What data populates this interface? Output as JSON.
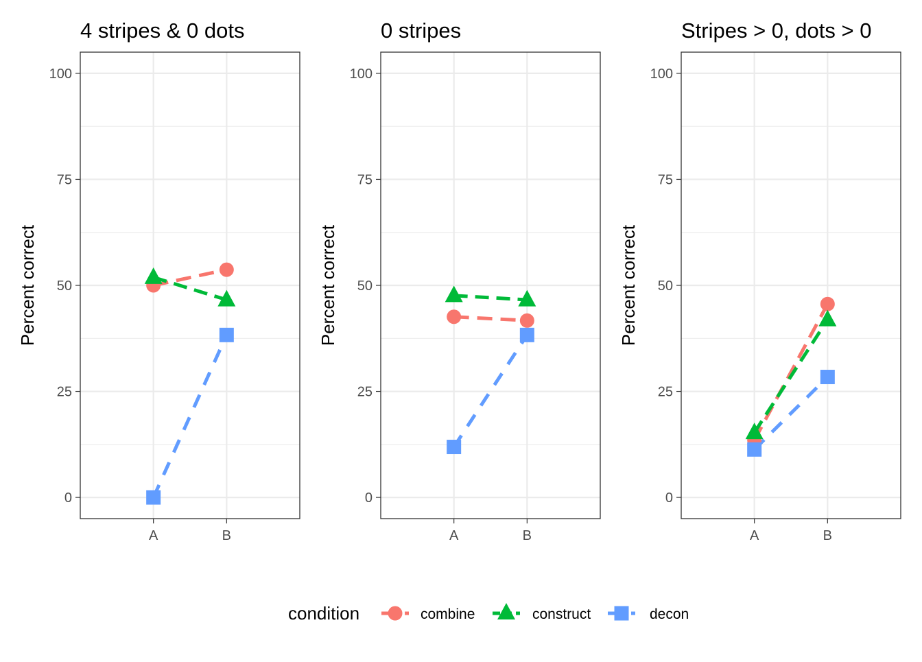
{
  "chart_data": {
    "type": "line",
    "facets": [
      {
        "title": "4 stripes & 0 dots",
        "categories": [
          "A",
          "B"
        ],
        "series": [
          {
            "name": "combine",
            "values": [
              50.0,
              53.7
            ]
          },
          {
            "name": "construct",
            "values": [
              51.9,
              46.6
            ]
          },
          {
            "name": "decon",
            "values": [
              0.0,
              38.3
            ]
          }
        ]
      },
      {
        "title": "0 stripes",
        "categories": [
          "A",
          "B"
        ],
        "series": [
          {
            "name": "combine",
            "values": [
              42.6,
              41.7
            ]
          },
          {
            "name": "construct",
            "values": [
              47.6,
              46.6
            ]
          },
          {
            "name": "decon",
            "values": [
              11.9,
              38.3
            ]
          }
        ]
      },
      {
        "title": "Stripes > 0, dots > 0",
        "categories": [
          "A",
          "B"
        ],
        "series": [
          {
            "name": "combine",
            "values": [
              13.5,
              45.6
            ]
          },
          {
            "name": "construct",
            "values": [
              15.3,
              41.9
            ]
          },
          {
            "name": "decon",
            "values": [
              11.3,
              28.4
            ]
          }
        ]
      }
    ],
    "ylabel": "Percent correct",
    "xlabel": "",
    "ylim": [
      -5,
      105
    ],
    "yticks": [
      0,
      25,
      50,
      75,
      100
    ],
    "grid": true,
    "legend": {
      "title": "condition",
      "position": "bottom",
      "entries": [
        {
          "name": "combine",
          "color": "#F8766D",
          "shape": "circle"
        },
        {
          "name": "construct",
          "color": "#00BA38",
          "shape": "triangle"
        },
        {
          "name": "decon",
          "color": "#619CFF",
          "shape": "square"
        }
      ]
    },
    "line_style": "dashed"
  }
}
